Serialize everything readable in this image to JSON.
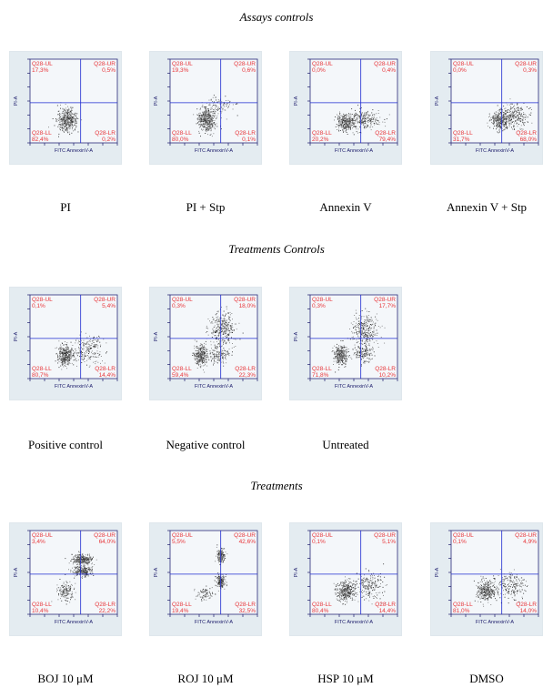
{
  "sections": [
    {
      "title": "Assays controls",
      "panels": [
        {
          "label": "PI",
          "ul": "17,3%",
          "ur": "0,5%",
          "ll": "82,4%",
          "lr": "0,2%"
        },
        {
          "label": "PI + Stp",
          "ul": "19,3%",
          "ur": "0,6%",
          "ll": "80,0%",
          "lr": "0,1%"
        },
        {
          "label": "Annexin V",
          "ul": "0,0%",
          "ur": "0,4%",
          "ll": "20,2%",
          "lr": "79,4%"
        },
        {
          "label": "Annexin V  + Stp",
          "ul": "0,0%",
          "ur": "0,3%",
          "ll": "31,7%",
          "lr": "68,0%"
        }
      ]
    },
    {
      "title": "Treatments Controls",
      "panels": [
        {
          "label": "Positive control",
          "ul": "0,1%",
          "ur": "5,4%",
          "ll": "80,7%",
          "lr": "14,4%"
        },
        {
          "label": "Negative control",
          "ul": "0,3%",
          "ur": "18,0%",
          "ll": "59,4%",
          "lr": "22,3%"
        },
        {
          "label": "Untreated",
          "ul": "0,3%",
          "ur": "17,7%",
          "ll": "71,8%",
          "lr": "10,2%"
        }
      ]
    },
    {
      "title": "Treatments",
      "panels": [
        {
          "label": "BOJ 10 μM",
          "ul": "3,4%",
          "ur": "64,0%",
          "ll": "10,4%",
          "lr": "22,2%"
        },
        {
          "label": "ROJ 10 μM",
          "ul": "5,5%",
          "ur": "42,6%",
          "ll": "19,4%",
          "lr": "32,5%"
        },
        {
          "label": "HSP 10 μM",
          "ul": "0,1%",
          "ur": "5,1%",
          "ll": "80,4%",
          "lr": "14,4%"
        },
        {
          "label": "DMSO",
          "ul": "0,1%",
          "ur": "4,9%",
          "ll": "81,0%",
          "lr": "14,0%"
        }
      ]
    }
  ],
  "plot": {
    "q_ul": "Q28-UL",
    "q_ur": "Q28-UR",
    "q_ll": "Q28-LL",
    "q_lr": "Q28-LR",
    "x_axis": "FITC AnnexinV-A",
    "y_axis": "PI-A"
  }
}
